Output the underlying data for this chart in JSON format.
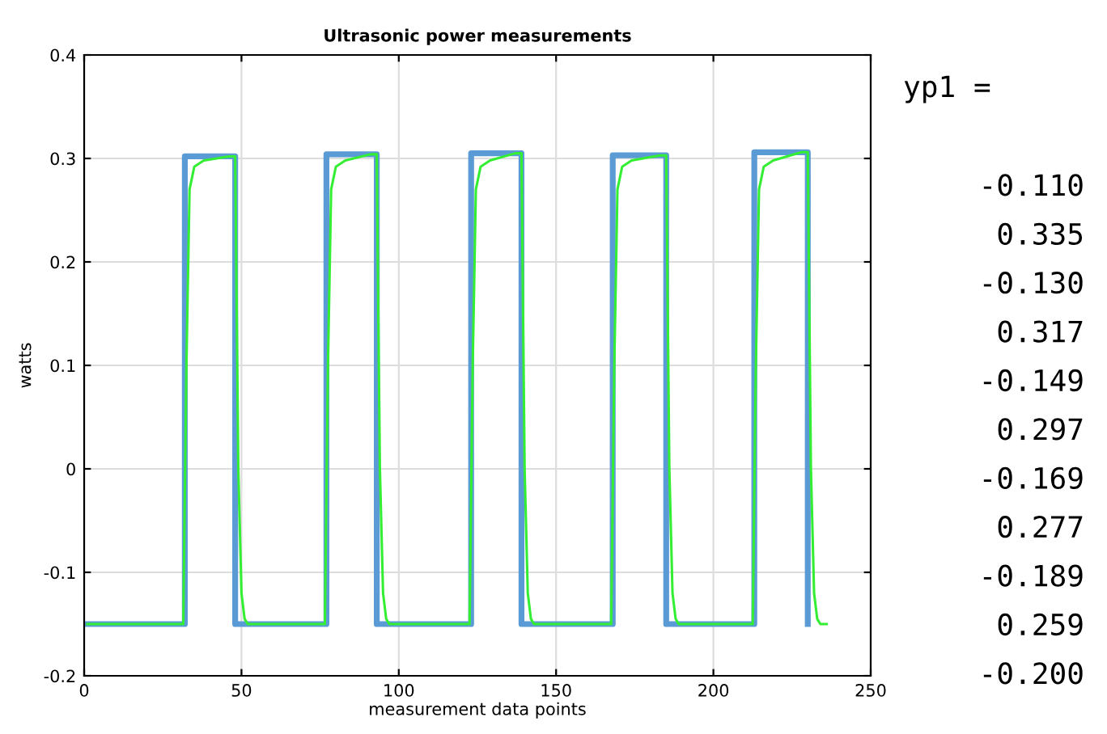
{
  "chart_data": {
    "type": "line",
    "title": "Ultrasonic power measurements",
    "xlabel": "measurement data points",
    "ylabel": "watts",
    "xlim": [
      0,
      250
    ],
    "xticks": [
      0,
      50,
      100,
      150,
      200,
      250
    ],
    "ylim": [
      -0.2,
      0.4
    ],
    "yticks": [
      -0.2,
      -0.1,
      0,
      0.1,
      0.2,
      0.3,
      0.4
    ],
    "grid": true,
    "series": [
      {
        "color": "#5b9bd5",
        "x": [
          1,
          32,
          32,
          48,
          48,
          77,
          77,
          93,
          93,
          123,
          123,
          139,
          139,
          168,
          168,
          185,
          185,
          213,
          213,
          230,
          230
        ],
        "values": [
          -0.15,
          -0.15,
          0.302,
          0.302,
          -0.15,
          -0.15,
          0.304,
          0.304,
          -0.15,
          -0.15,
          0.305,
          0.305,
          -0.15,
          -0.15,
          0.303,
          0.303,
          -0.15,
          -0.15,
          0.306,
          0.306,
          -0.15
        ]
      },
      {
        "color": "#33ee33",
        "x": [
          1,
          31.5,
          32.5,
          33.5,
          35,
          38,
          46,
          48,
          49,
          50,
          51,
          52,
          76.5,
          77.5,
          78.5,
          80,
          83,
          91,
          93,
          94,
          95,
          96,
          97,
          122.5,
          123.5,
          124.5,
          126,
          129,
          137,
          139,
          140,
          141,
          142,
          143,
          167.5,
          168.5,
          169.5,
          171,
          174,
          183,
          185,
          186,
          187,
          188,
          189,
          212.5,
          213.5,
          214.5,
          216,
          219,
          228,
          230,
          231,
          232,
          233,
          234,
          236
        ],
        "values": [
          -0.15,
          -0.15,
          0.1,
          0.27,
          0.292,
          0.298,
          0.302,
          0.302,
          0.0,
          -0.12,
          -0.145,
          -0.15,
          -0.15,
          0.1,
          0.27,
          0.292,
          0.298,
          0.304,
          0.304,
          0.0,
          -0.12,
          -0.145,
          -0.15,
          -0.15,
          0.1,
          0.27,
          0.292,
          0.298,
          0.305,
          0.305,
          0.0,
          -0.12,
          -0.145,
          -0.15,
          -0.15,
          0.1,
          0.27,
          0.292,
          0.298,
          0.303,
          0.303,
          0.0,
          -0.12,
          -0.145,
          -0.15,
          -0.15,
          0.1,
          0.27,
          0.292,
          0.298,
          0.306,
          0.306,
          0.0,
          -0.12,
          -0.145,
          -0.15,
          -0.15
        ]
      }
    ],
    "annotations": [
      "yp1 =",
      "-0.110",
      "0.335",
      "-0.130",
      "0.317",
      "-0.149",
      "0.297",
      "-0.169",
      "0.277",
      "-0.189",
      "0.259",
      "-0.200"
    ]
  }
}
